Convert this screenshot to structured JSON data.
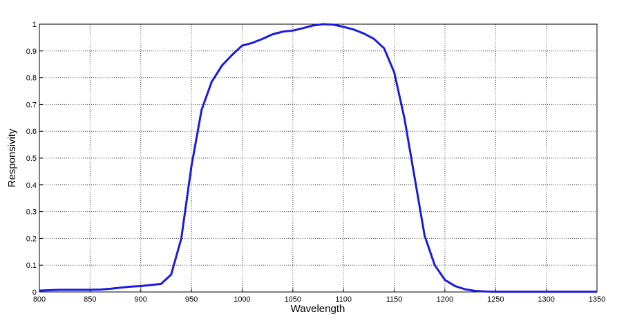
{
  "chart_data": {
    "type": "line",
    "x_label": "Wavelength",
    "y_label": "Responsivity",
    "x": [
      800,
      820,
      850,
      860,
      870,
      880,
      890,
      900,
      910,
      920,
      930,
      940,
      950,
      960,
      970,
      980,
      990,
      1000,
      1010,
      1020,
      1030,
      1040,
      1050,
      1060,
      1070,
      1080,
      1090,
      1100,
      1110,
      1120,
      1130,
      1140,
      1150,
      1160,
      1170,
      1180,
      1190,
      1200,
      1210,
      1220,
      1230,
      1240,
      1250,
      1300,
      1350
    ],
    "series": [
      {
        "color": "#1a1ae0",
        "values": [
          0.005,
          0.008,
          0.008,
          0.009,
          0.012,
          0.016,
          0.02,
          0.022,
          0.026,
          0.03,
          0.065,
          0.2,
          0.47,
          0.68,
          0.785,
          0.845,
          0.885,
          0.92,
          0.93,
          0.945,
          0.962,
          0.972,
          0.976,
          0.985,
          0.995,
          1.0,
          0.998,
          0.99,
          0.98,
          0.965,
          0.945,
          0.91,
          0.82,
          0.65,
          0.43,
          0.21,
          0.1,
          0.045,
          0.022,
          0.01,
          0.004,
          0.002,
          0.001,
          0.001,
          0.001
        ]
      }
    ],
    "xlim": [
      800,
      1350
    ],
    "xticks": [
      800,
      850,
      900,
      950,
      1000,
      1050,
      1100,
      1150,
      1200,
      1250,
      1300,
      1350
    ],
    "ylim": [
      0,
      1
    ],
    "yticks": [
      0,
      0.1,
      0.2,
      0.3,
      0.4,
      0.5,
      0.6,
      0.7,
      0.8,
      0.9,
      1
    ],
    "grid": true
  }
}
